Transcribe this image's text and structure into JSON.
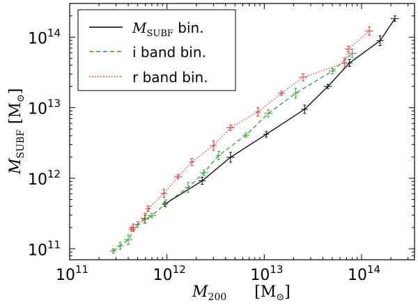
{
  "chart_data": {
    "type": "line",
    "title": "",
    "xlabel": {
      "var": "M",
      "sub": "200",
      "unit_open": "[M",
      "unit_sub": "⊙",
      "unit_close": "]"
    },
    "ylabel": {
      "var": "M",
      "sub": "SUBF",
      "unit_open": "[M",
      "unit_sub": "⊙",
      "unit_close": "]"
    },
    "xscale": "log",
    "yscale": "log",
    "xlim": [
      100000000000.0,
      350000000000000.0
    ],
    "ylim": [
      70000000000.0,
      300000000000000.0
    ],
    "xticks": [
      {
        "base": "10",
        "exp": "11",
        "value": 100000000000.0
      },
      {
        "base": "10",
        "exp": "12",
        "value": 1000000000000.0
      },
      {
        "base": "10",
        "exp": "13",
        "value": 10000000000000.0
      },
      {
        "base": "10",
        "exp": "14",
        "value": 100000000000000.0
      }
    ],
    "yticks": [
      {
        "base": "10",
        "exp": "11",
        "value": 100000000000.0
      },
      {
        "base": "10",
        "exp": "12",
        "value": 1000000000000.0
      },
      {
        "base": "10",
        "exp": "13",
        "value": 10000000000000.0
      },
      {
        "base": "10",
        "exp": "14",
        "value": 100000000000000.0
      }
    ],
    "legend": {
      "placement": "top-left",
      "entries": [
        {
          "label_var": "M",
          "label_sub": "SUBF",
          "label_rest": " bin.",
          "color": "#000000",
          "style": "solid"
        },
        {
          "label": "i band bin.",
          "color": "#2ca02c",
          "style": "dashed"
        },
        {
          "label": "r band bin.",
          "color": "#ff2a2a",
          "style": "dotted"
        }
      ]
    },
    "series": [
      {
        "name": "M_SUBF bin.",
        "color": "#000000",
        "style": "solid",
        "x": [
          950000000000.0,
          2300000000000.0,
          4500000000000.0,
          10500000000000.0,
          26000000000000.0,
          45000000000000.0,
          75000000000000.0,
          155000000000000.0,
          220000000000000.0
        ],
        "y": [
          430000000000.0,
          920000000000.0,
          1980000000000.0,
          4200000000000.0,
          9500000000000.0,
          20000000000000.0,
          43000000000000.0,
          89000000000000.0,
          183000000000000.0
        ]
      },
      {
        "name": "i band bin.",
        "color": "#2ca02c",
        "style": "dashed",
        "x": [
          280000000000.0,
          330000000000.0,
          400000000000.0,
          500000000000.0,
          600000000000.0,
          700000000000.0,
          970000000000.0,
          1650000000000.0,
          2400000000000.0,
          3400000000000.0,
          6500000000000.0,
          11000000000000.0,
          21000000000000.0,
          50000000000000.0,
          80000000000000.0
        ],
        "y": [
          93000000000.0,
          110000000000.0,
          135000000000.0,
          220000000000.0,
          265000000000.0,
          295000000000.0,
          440000000000.0,
          740000000000.0,
          1200000000000.0,
          2100000000000.0,
          4100000000000.0,
          8300000000000.0,
          16000000000000.0,
          33000000000000.0,
          59000000000000.0
        ]
      },
      {
        "name": "r band bin.",
        "color": "#ff2a2a",
        "style": "dotted",
        "x": [
          430000000000.0,
          450000000000.0,
          590000000000.0,
          640000000000.0,
          930000000000.0,
          1300000000000.0,
          1800000000000.0,
          3000000000000.0,
          4500000000000.0,
          8600000000000.0,
          15000000000000.0,
          25000000000000.0,
          67000000000000.0,
          73000000000000.0,
          120000000000000.0
        ],
        "y": [
          190000000000.0,
          200000000000.0,
          270000000000.0,
          370000000000.0,
          610000000000.0,
          1050000000000.0,
          1700000000000.0,
          2900000000000.0,
          5200000000000.0,
          8700000000000.0,
          16000000000000.0,
          27000000000000.0,
          43000000000000.0,
          68000000000000.0,
          122000000000000.0
        ]
      }
    ]
  }
}
